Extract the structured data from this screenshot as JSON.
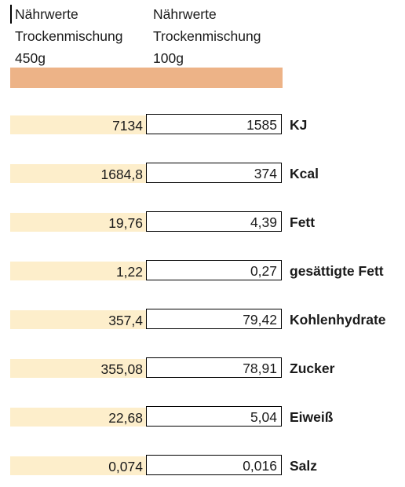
{
  "headers": {
    "col1": [
      "Nährwerte",
      "Trockenmischung",
      "450g"
    ],
    "col2": [
      "Nährwerte",
      "Trockenmischung",
      "100g"
    ]
  },
  "rows": [
    {
      "v450": "7134",
      "v100": "1585",
      "label": "KJ"
    },
    {
      "v450": "1684,8",
      "v100": "374",
      "label": "Kcal"
    },
    {
      "v450": "19,76",
      "v100": "4,39",
      "label": "Fett"
    },
    {
      "v450": "1,22",
      "v100": "0,27",
      "label": "gesättigte Fett"
    },
    {
      "v450": "357,4",
      "v100": "79,42",
      "label": "Kohlenhydrate"
    },
    {
      "v450": "355,08",
      "v100": "78,91",
      "label": "Zucker"
    },
    {
      "v450": "22,68",
      "v100": "5,04",
      "label": "Eiweiß"
    },
    {
      "v450": "0,074",
      "v100": "0,016",
      "label": "Salz"
    }
  ]
}
